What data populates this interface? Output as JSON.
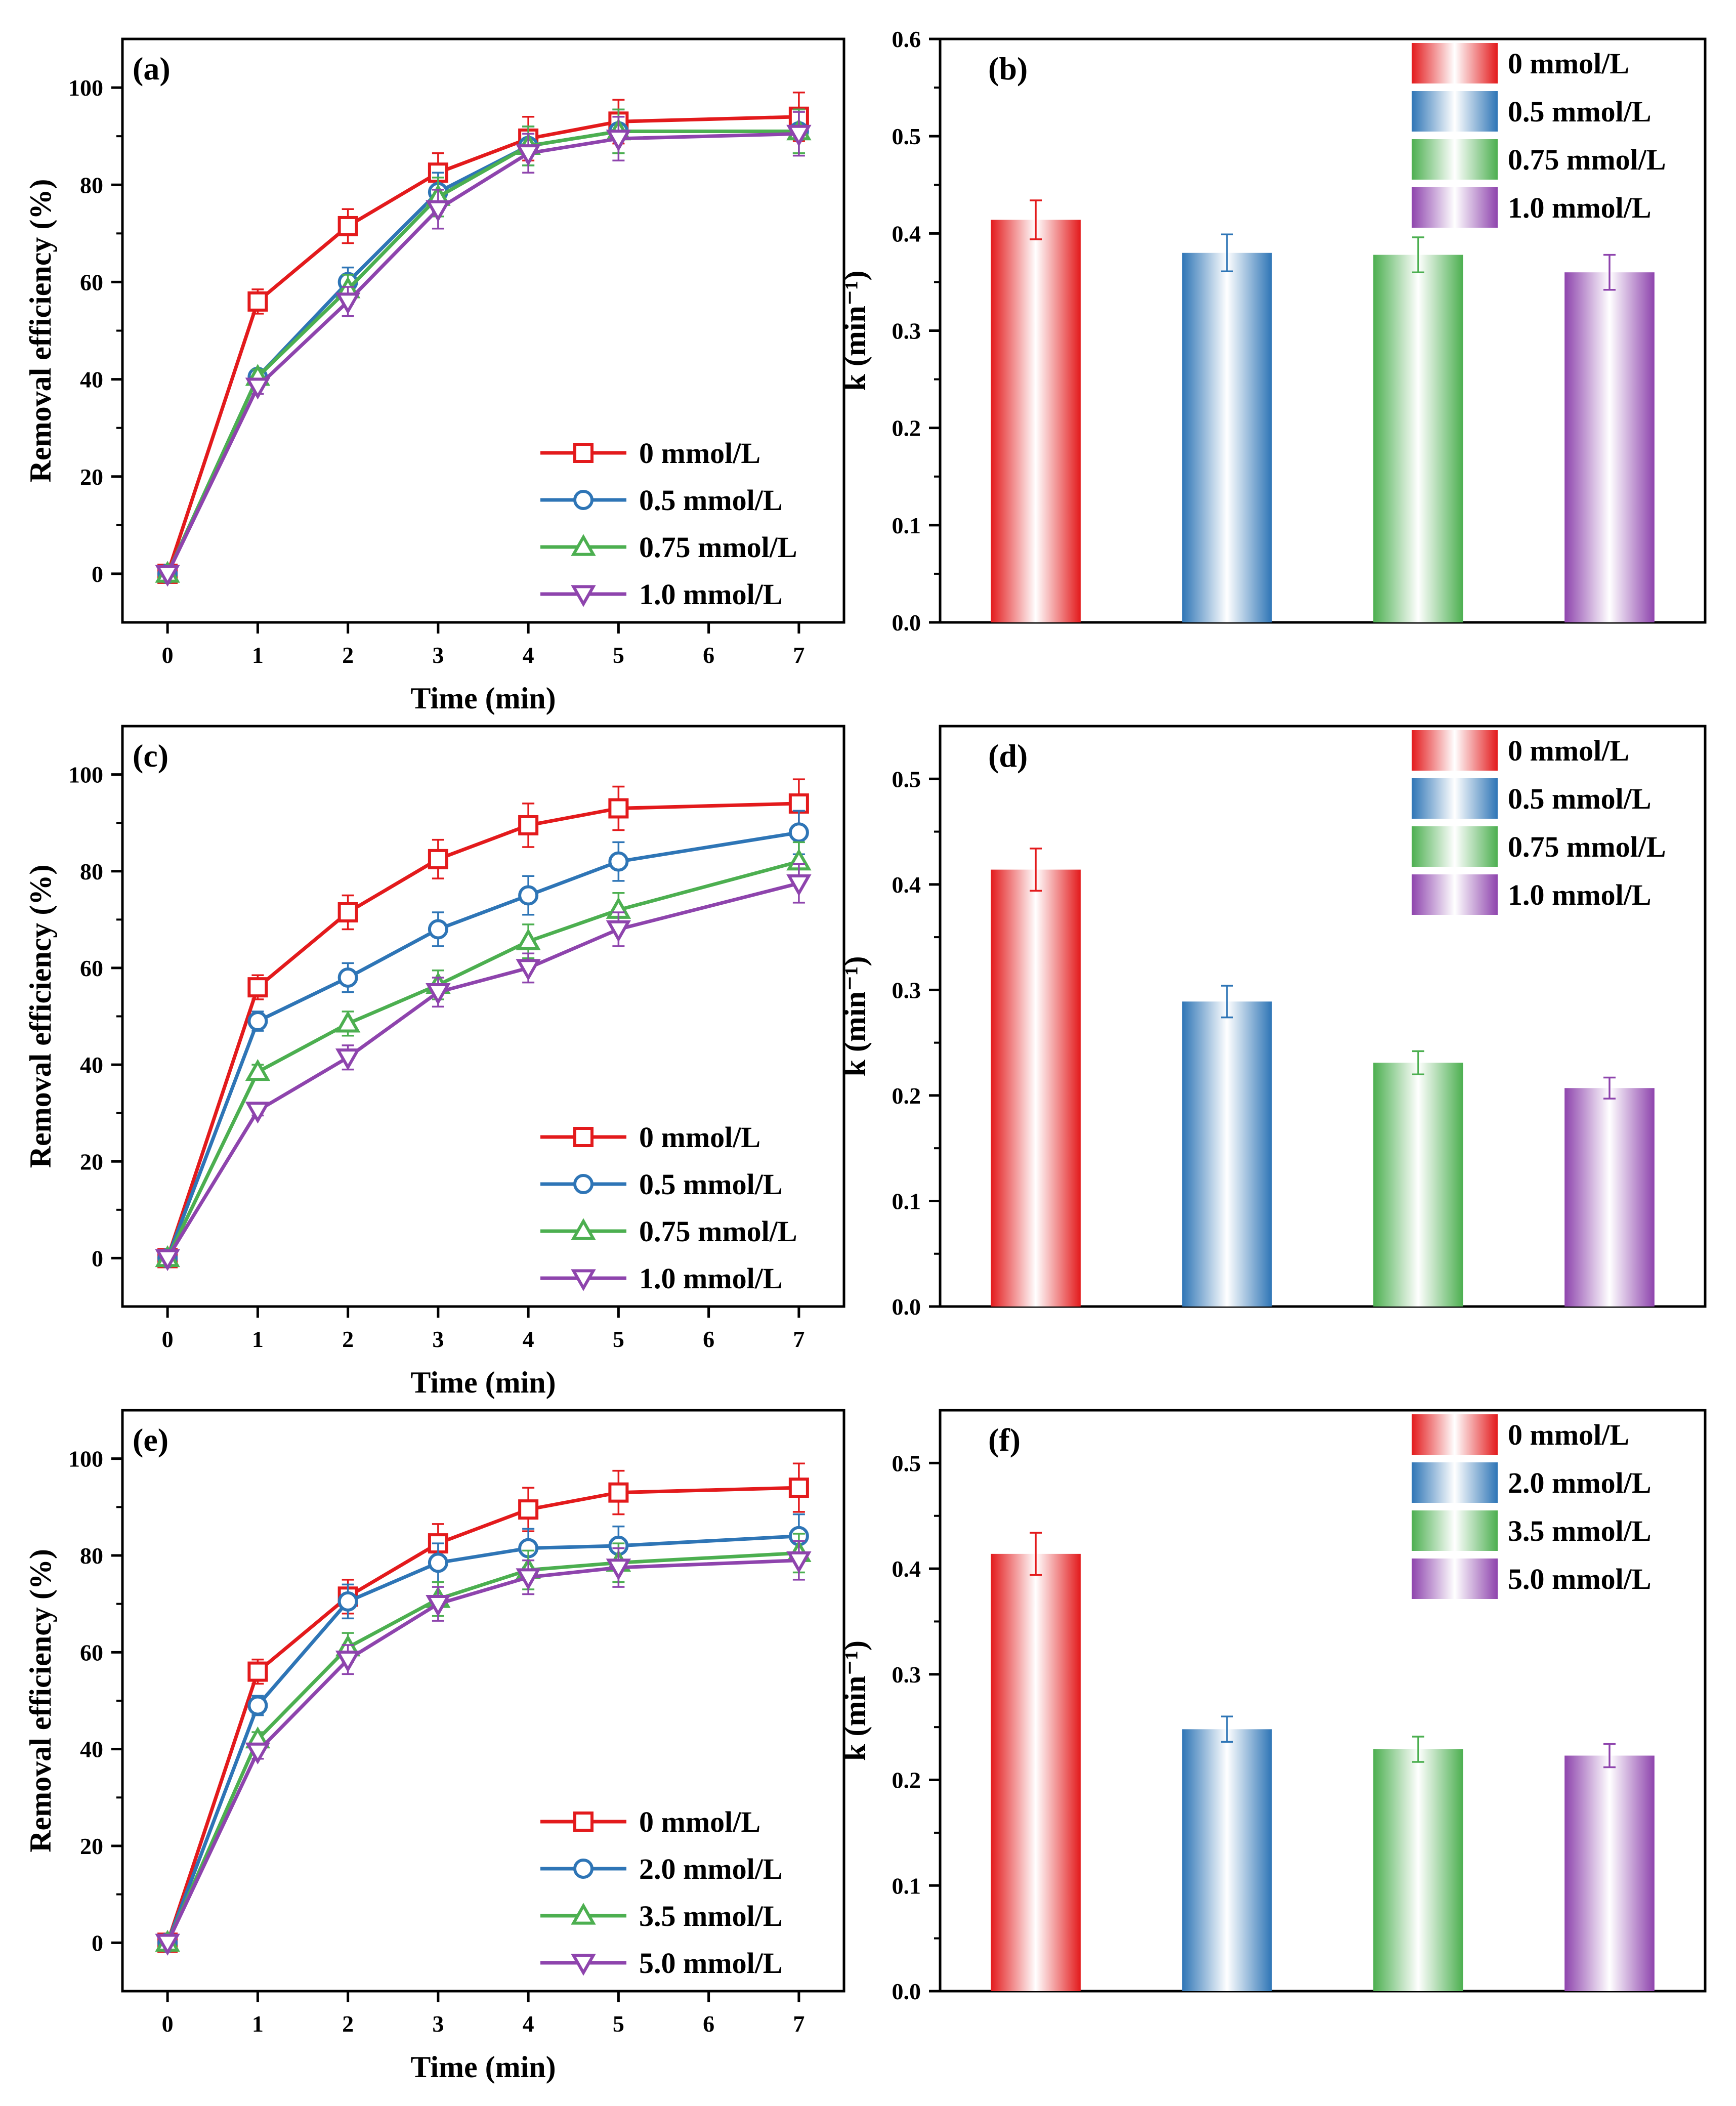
{
  "colors": {
    "red": "#e31a1c",
    "blue": "#2e75b6",
    "green": "#4caf50",
    "purple": "#8e44ad"
  },
  "chart_data": [
    {
      "panel": "(a)",
      "type": "line",
      "xlabel": "Time (min)",
      "ylabel": "Removal efficiency (%)",
      "xlim": [
        -0.5,
        7.5
      ],
      "ylim": [
        -10,
        110
      ],
      "xticks": [
        "0",
        "1",
        "2",
        "3",
        "4",
        "5",
        "6",
        "7"
      ],
      "yticks": [
        "0",
        "20",
        "40",
        "60",
        "80",
        "100"
      ],
      "legend_position": "bottom-right",
      "x": [
        0,
        1,
        2,
        3,
        4,
        5,
        7
      ],
      "series": [
        {
          "name": "0 mmol/L",
          "color": "red",
          "marker": "square",
          "values": [
            0,
            56,
            71.5,
            82.5,
            89.5,
            93,
            94
          ],
          "errors": [
            0,
            2.5,
            3.5,
            4,
            4.5,
            4.5,
            5
          ]
        },
        {
          "name": "0.5 mmol/L",
          "color": "blue",
          "marker": "circle",
          "values": [
            0,
            40.5,
            60,
            78.5,
            88,
            91,
            91
          ],
          "errors": [
            0,
            1.5,
            3,
            4,
            4,
            4.5,
            4.5
          ]
        },
        {
          "name": "0.75 mmol/L",
          "color": "green",
          "marker": "triangle-up",
          "values": [
            0,
            40.5,
            58.5,
            77.5,
            88,
            91,
            91
          ],
          "errors": [
            0,
            1.5,
            3,
            4,
            4,
            4.5,
            4.5
          ]
        },
        {
          "name": "1.0 mmol/L",
          "color": "purple",
          "marker": "triangle-down",
          "values": [
            0,
            38.5,
            56,
            75,
            86.5,
            89.5,
            90.5
          ],
          "errors": [
            0,
            1.5,
            3,
            4,
            4,
            4.5,
            4.5
          ]
        }
      ]
    },
    {
      "panel": "(b)",
      "type": "bar",
      "xlabel": "",
      "ylabel": "k (min⁻¹)",
      "ylim": [
        0,
        0.6
      ],
      "yticks": [
        "0.0",
        "0.1",
        "0.2",
        "0.3",
        "0.4",
        "0.5",
        "0.6"
      ],
      "legend_position": "top-right",
      "categories": [
        "0 mmol/L",
        "0.5 mmol/L",
        "0.75 mmol/L",
        "1.0 mmol/L"
      ],
      "colors": [
        "red",
        "blue",
        "green",
        "purple"
      ],
      "values": [
        0.414,
        0.38,
        0.378,
        0.36
      ],
      "errors": [
        0.02,
        0.019,
        0.018,
        0.018
      ]
    },
    {
      "panel": "(c)",
      "type": "line",
      "xlabel": "Time (min)",
      "ylabel": "Removal efficiency (%)",
      "xlim": [
        -0.5,
        7.5
      ],
      "ylim": [
        -10,
        110
      ],
      "xticks": [
        "0",
        "1",
        "2",
        "3",
        "4",
        "5",
        "6",
        "7"
      ],
      "yticks": [
        "0",
        "20",
        "40",
        "60",
        "80",
        "100"
      ],
      "legend_position": "bottom-right",
      "x": [
        0,
        1,
        2,
        3,
        4,
        5,
        7
      ],
      "series": [
        {
          "name": "0 mmol/L",
          "color": "red",
          "marker": "square",
          "values": [
            0,
            56,
            71.5,
            82.5,
            89.5,
            93,
            94
          ],
          "errors": [
            0,
            2.5,
            3.5,
            4,
            4.5,
            4.5,
            5
          ]
        },
        {
          "name": "0.5 mmol/L",
          "color": "blue",
          "marker": "circle",
          "values": [
            0,
            49,
            58,
            68,
            75,
            82,
            88
          ],
          "errors": [
            0,
            2,
            3,
            3.5,
            4,
            4,
            4.5
          ]
        },
        {
          "name": "0.75 mmol/L",
          "color": "green",
          "marker": "triangle-up",
          "values": [
            0,
            38.5,
            48.5,
            56.5,
            65.5,
            72,
            82
          ],
          "errors": [
            0,
            1.5,
            2.5,
            3,
            3.5,
            3.5,
            4
          ]
        },
        {
          "name": "1.0 mmol/L",
          "color": "purple",
          "marker": "triangle-down",
          "values": [
            0,
            30.5,
            41.5,
            55,
            60,
            68,
            77.5
          ],
          "errors": [
            0,
            1,
            2.5,
            3,
            3,
            3.5,
            4
          ]
        }
      ]
    },
    {
      "panel": "(d)",
      "type": "bar",
      "xlabel": "",
      "ylabel": "k (min⁻¹)",
      "ylim": [
        0,
        0.55
      ],
      "yticks": [
        "0.0",
        "0.1",
        "0.2",
        "0.3",
        "0.4",
        "0.5"
      ],
      "legend_position": "top-right",
      "categories": [
        "0 mmol/L",
        "0.5 mmol/L",
        "0.75 mmol/L",
        "1.0 mmol/L"
      ],
      "colors": [
        "red",
        "blue",
        "green",
        "purple"
      ],
      "values": [
        0.414,
        0.289,
        0.231,
        0.207
      ],
      "errors": [
        0.02,
        0.015,
        0.011,
        0.01
      ]
    },
    {
      "panel": "(e)",
      "type": "line",
      "xlabel": "Time (min)",
      "ylabel": "Removal efficiency (%)",
      "xlim": [
        -0.5,
        7.5
      ],
      "ylim": [
        -10,
        110
      ],
      "xticks": [
        "0",
        "1",
        "2",
        "3",
        "4",
        "5",
        "6",
        "7"
      ],
      "yticks": [
        "0",
        "20",
        "40",
        "60",
        "80",
        "100"
      ],
      "legend_position": "bottom-right",
      "x": [
        0,
        1,
        2,
        3,
        4,
        5,
        7
      ],
      "series": [
        {
          "name": "0 mmol/L",
          "color": "red",
          "marker": "square",
          "values": [
            0,
            56,
            71.5,
            82.5,
            89.5,
            93,
            94
          ],
          "errors": [
            0,
            2.5,
            3.5,
            4,
            4.5,
            4.5,
            5
          ]
        },
        {
          "name": "2.0 mmol/L",
          "color": "blue",
          "marker": "circle",
          "values": [
            0,
            49,
            70.5,
            78.5,
            81.5,
            82,
            84
          ],
          "errors": [
            0,
            2,
            3.5,
            4,
            4,
            4,
            4.5
          ]
        },
        {
          "name": "3.5 mmol/L",
          "color": "green",
          "marker": "triangle-up",
          "values": [
            0,
            42,
            61,
            71,
            77,
            78.5,
            80.5
          ],
          "errors": [
            0,
            1.5,
            3,
            3.5,
            4,
            4,
            4
          ]
        },
        {
          "name": "5.0 mmol/L",
          "color": "purple",
          "marker": "triangle-down",
          "values": [
            0,
            39.5,
            58.5,
            70,
            75.5,
            77.5,
            79
          ],
          "errors": [
            0,
            1.5,
            3,
            3.5,
            3.5,
            4,
            4
          ]
        }
      ]
    },
    {
      "panel": "(f)",
      "type": "bar",
      "xlabel": "",
      "ylabel": "k (min⁻¹)",
      "ylim": [
        0,
        0.55
      ],
      "yticks": [
        "0.0",
        "0.1",
        "0.2",
        "0.3",
        "0.4",
        "0.5"
      ],
      "legend_position": "top-right",
      "categories": [
        "0 mmol/L",
        "2.0 mmol/L",
        "3.5 mmol/L",
        "5.0 mmol/L"
      ],
      "colors": [
        "red",
        "blue",
        "green",
        "purple"
      ],
      "values": [
        0.414,
        0.248,
        0.229,
        0.223
      ],
      "errors": [
        0.02,
        0.012,
        0.012,
        0.011
      ]
    }
  ]
}
